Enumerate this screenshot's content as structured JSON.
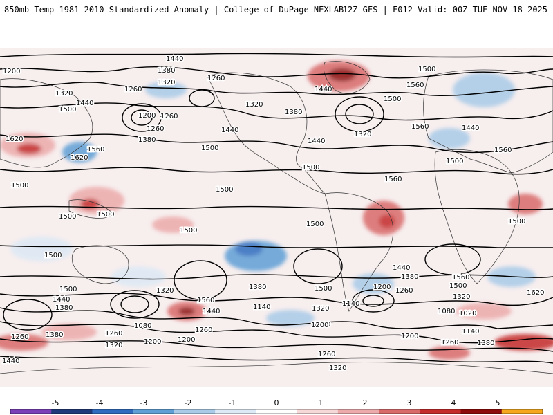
{
  "header": {
    "title": "850mb Temp 1981-2010 Standardized Anomaly | College of DuPage NEXLAB",
    "run_info": "12Z GFS | F012 Valid: 00Z TUE NOV 18 2025"
  },
  "contour_labels": [
    "1440",
    "1380",
    "1320",
    "1260",
    "1200",
    "1140",
    "1080",
    "1020",
    "1500",
    "1560",
    "1620"
  ],
  "colorbar": {
    "ticks": [
      "-5",
      "-4",
      "-3",
      "-2",
      "-1",
      "0",
      "1",
      "2",
      "3",
      "4",
      "5"
    ],
    "colors": [
      "#7b3fb8",
      "#1f3a7a",
      "#2f6cc0",
      "#5e9fd6",
      "#a9cbe8",
      "#dde9f4",
      "#ffffff",
      "#f6d8d8",
      "#ecaaaa",
      "#d96a6a",
      "#c42b2b",
      "#8e0b0b",
      "#f5a81e"
    ]
  },
  "colors": {
    "neg_strong": "#2f6cc0",
    "neg_light": "#a9cbe8",
    "pos_light": "#f4c6c6",
    "pos_strong": "#c42b2b"
  }
}
